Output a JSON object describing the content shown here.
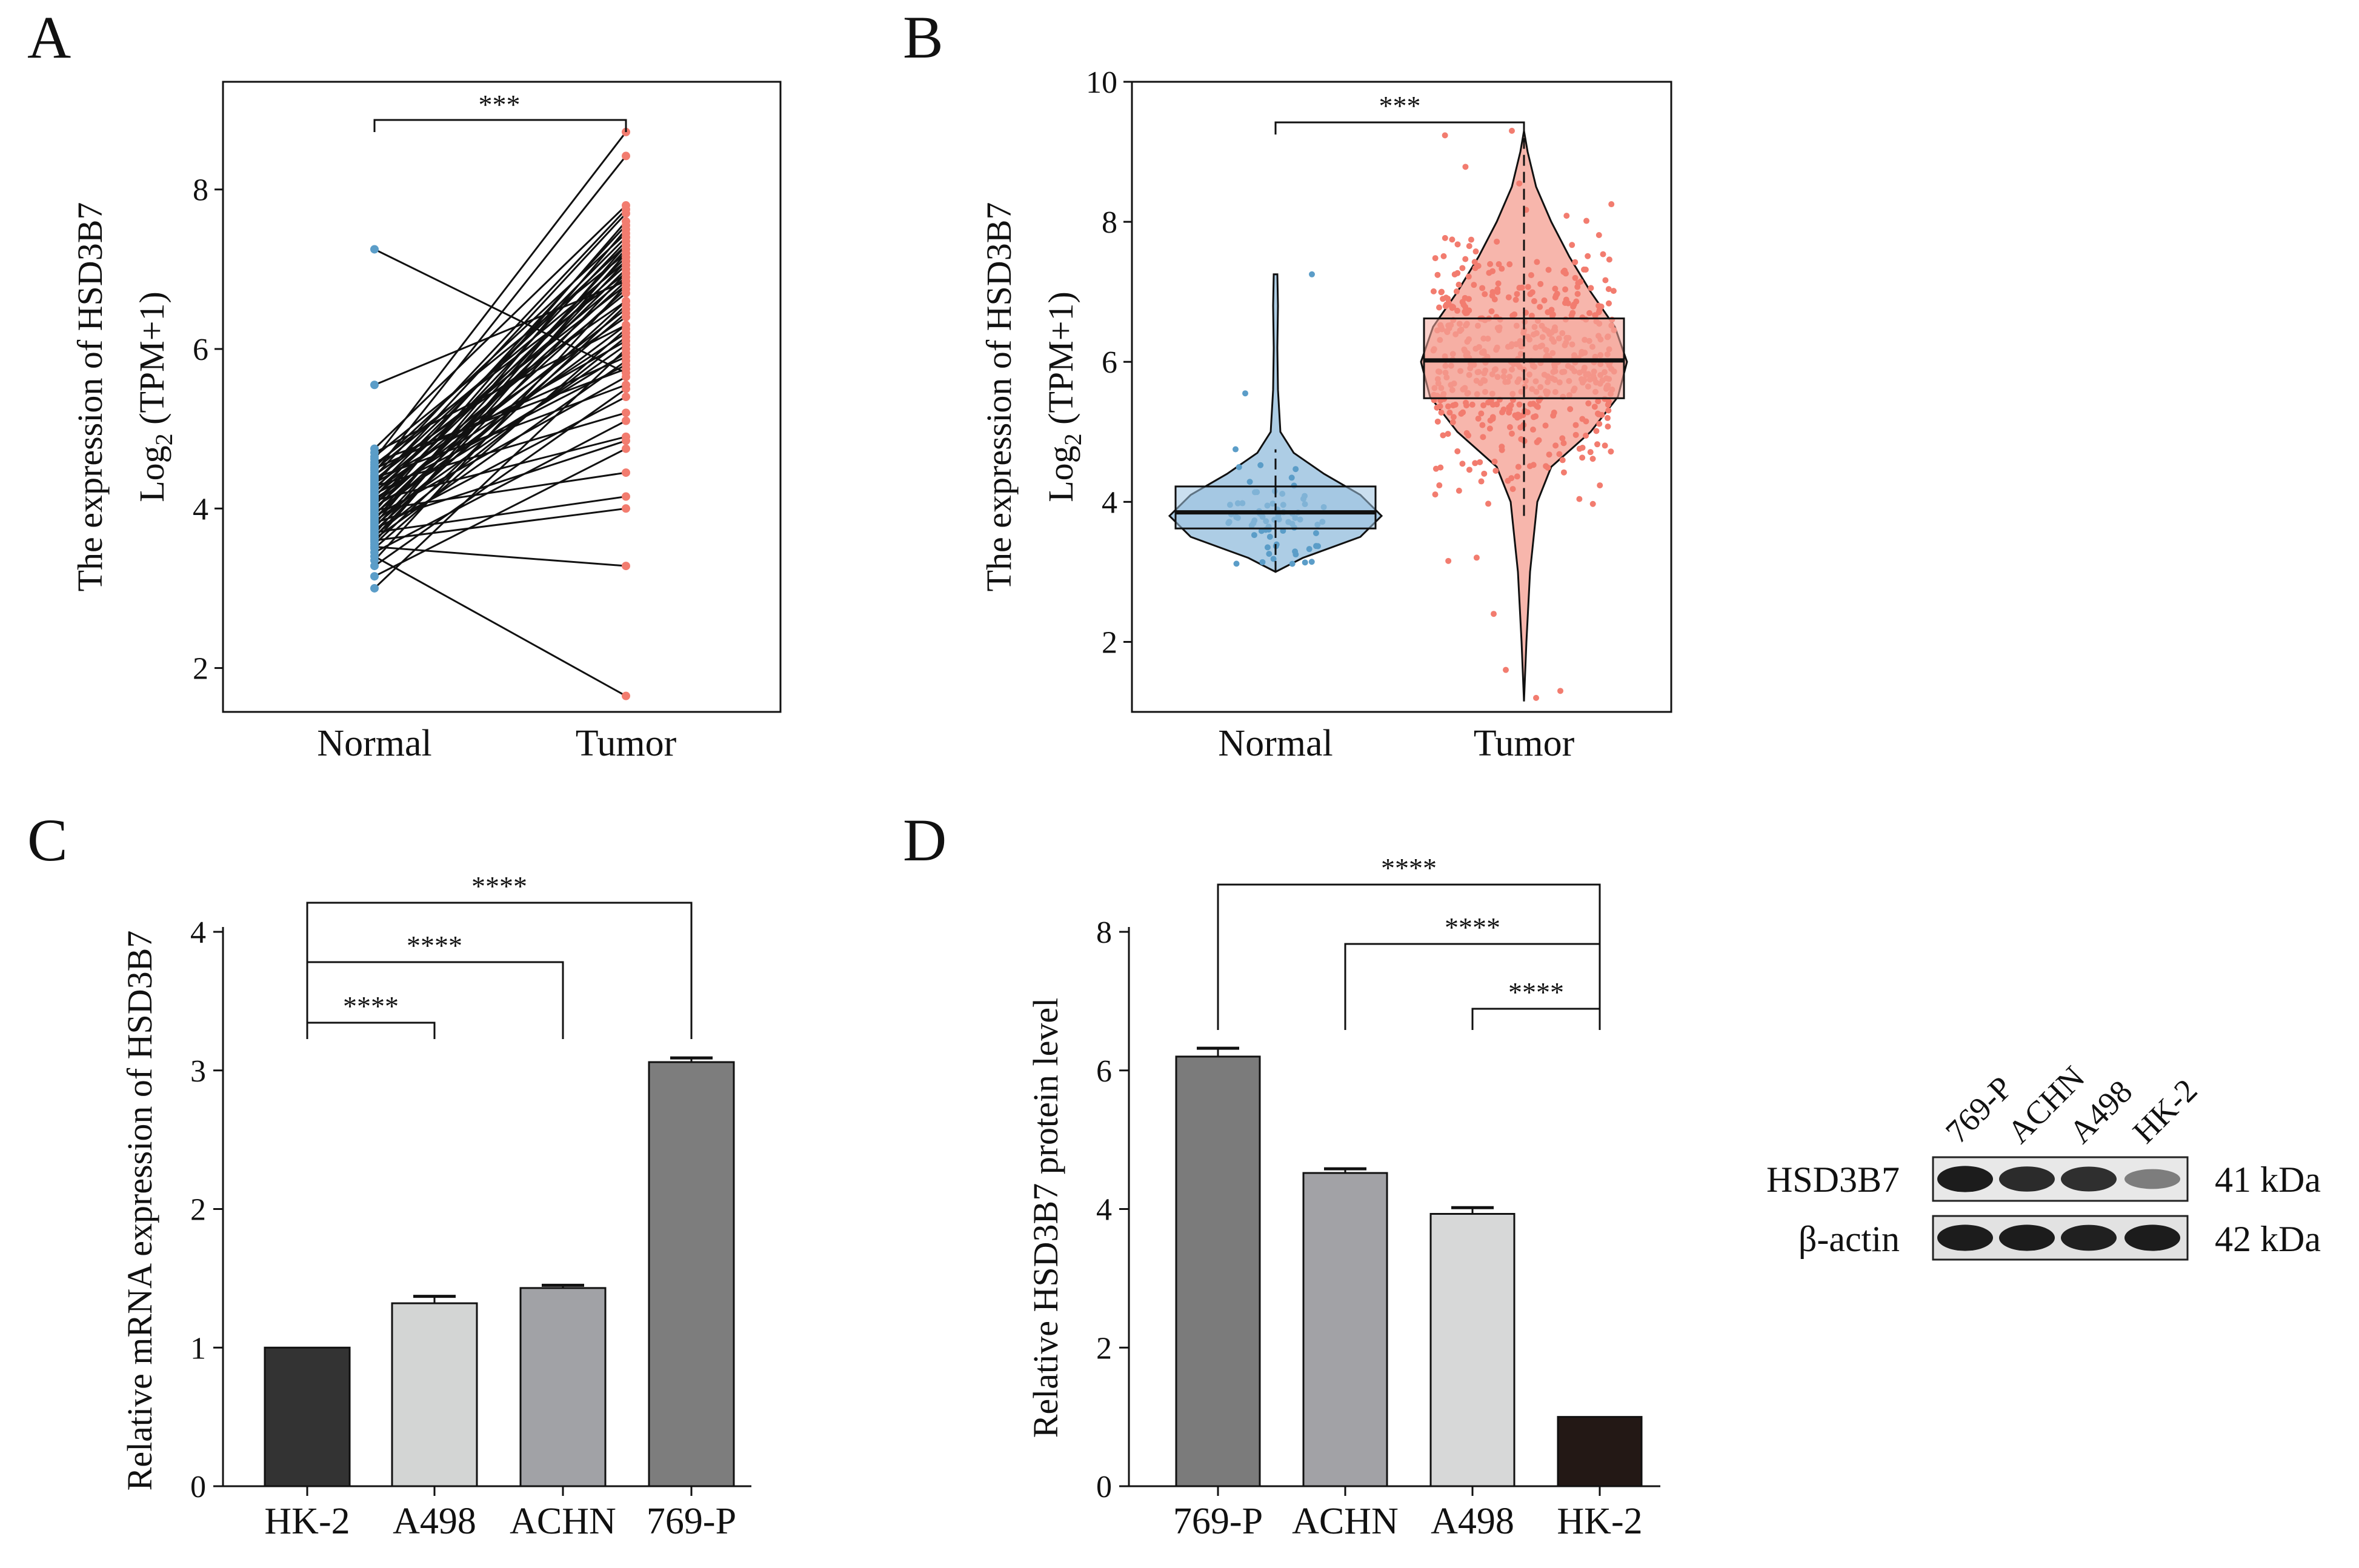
{
  "colors": {
    "normal": "#5b9dc8",
    "tumor": "#f27c6f",
    "normal_fill": "#9fc4e1",
    "tumor_fill": "#f6a99e",
    "axis": "#111111"
  },
  "chart_data": [
    {
      "panel": "A",
      "type": "line",
      "ylabel_line1": "The expression of HSD3B7",
      "ylabel_line2_prefix": "Log",
      "ylabel_line2_sub": "2",
      "ylabel_line2_suffix": " (TPM+1)",
      "categories": [
        "Normal",
        "Tumor"
      ],
      "ylim": [
        1.45,
        9.35
      ],
      "yticks": [
        2,
        4,
        6,
        8
      ],
      "significance": "***",
      "note": "paired samples: each line connects a normal value to its matched tumor value",
      "pairs": [
        [
          7.25,
          5.7
        ],
        [
          5.55,
          6.85
        ],
        [
          4.75,
          7.8
        ],
        [
          4.7,
          6.3
        ],
        [
          4.65,
          7.2
        ],
        [
          4.62,
          8.72
        ],
        [
          4.58,
          5.75
        ],
        [
          4.55,
          6.95
        ],
        [
          4.52,
          7.45
        ],
        [
          4.5,
          5.9
        ],
        [
          4.48,
          7.1
        ],
        [
          4.45,
          8.42
        ],
        [
          4.42,
          6.6
        ],
        [
          4.4,
          7.75
        ],
        [
          4.38,
          5.55
        ],
        [
          4.36,
          6.8
        ],
        [
          4.34,
          7.3
        ],
        [
          4.32,
          6.1
        ],
        [
          4.3,
          7.7
        ],
        [
          4.28,
          5.2
        ],
        [
          4.26,
          6.9
        ],
        [
          4.24,
          7.4
        ],
        [
          4.22,
          6.4
        ],
        [
          4.2,
          7.05
        ],
        [
          4.18,
          5.8
        ],
        [
          4.16,
          6.7
        ],
        [
          4.14,
          7.55
        ],
        [
          4.12,
          6.2
        ],
        [
          4.1,
          4.9
        ],
        [
          4.08,
          7.15
        ],
        [
          4.06,
          6.5
        ],
        [
          4.04,
          7.35
        ],
        [
          4.02,
          5.95
        ],
        [
          4.0,
          6.85
        ],
        [
          3.98,
          4.45
        ],
        [
          3.96,
          7.6
        ],
        [
          3.94,
          6.3
        ],
        [
          3.92,
          7.0
        ],
        [
          3.9,
          5.65
        ],
        [
          3.88,
          6.75
        ],
        [
          3.86,
          7.25
        ],
        [
          3.84,
          6.05
        ],
        [
          3.82,
          4.85
        ],
        [
          3.8,
          7.5
        ],
        [
          3.78,
          6.45
        ],
        [
          3.76,
          7.1
        ],
        [
          3.74,
          5.4
        ],
        [
          3.72,
          6.6
        ],
        [
          3.7,
          4.15
        ],
        [
          3.68,
          7.3
        ],
        [
          3.66,
          6.15
        ],
        [
          3.64,
          6.95
        ],
        [
          3.62,
          5.85
        ],
        [
          3.6,
          4.0
        ],
        [
          3.58,
          7.2
        ],
        [
          3.55,
          6.55
        ],
        [
          3.52,
          3.28
        ],
        [
          3.5,
          6.25
        ],
        [
          3.45,
          5.1
        ],
        [
          3.4,
          1.65
        ],
        [
          3.35,
          6.8
        ],
        [
          3.28,
          5.5
        ],
        [
          3.15,
          4.75
        ],
        [
          3.0,
          6.0
        ]
      ]
    },
    {
      "panel": "B",
      "type": "box",
      "ylabel_line1": "The expression of HSD3B7",
      "ylabel_line2_prefix": "Log",
      "ylabel_line2_sub": "2",
      "ylabel_line2_suffix": " (TPM+1)",
      "categories": [
        "Normal",
        "Tumor"
      ],
      "ylim": [
        1.0,
        10.0
      ],
      "yticks": [
        2,
        4,
        6,
        8,
        10
      ],
      "significance": "***",
      "boxes": [
        {
          "name": "Normal",
          "q1": 3.62,
          "median": 3.85,
          "q3": 4.22,
          "whisker_low": 3.0,
          "whisker_high": 4.75,
          "min": 3.0,
          "max": 7.25,
          "n_points": 72
        },
        {
          "name": "Tumor",
          "q1": 5.48,
          "median": 6.02,
          "q3": 6.62,
          "whisker_low": 3.8,
          "whisker_high": 9.3,
          "min": 1.15,
          "max": 9.3,
          "n_points": 530
        }
      ]
    },
    {
      "panel": "C",
      "type": "bar",
      "ylabel": "Relative mRNA expression of HSD3B7",
      "categories": [
        "HK-2",
        "A498",
        "ACHN",
        "769-P"
      ],
      "values": [
        1.0,
        1.32,
        1.43,
        3.06
      ],
      "errors": [
        0.0,
        0.05,
        0.02,
        0.03
      ],
      "bar_colors": [
        "#333333",
        "#d3d5d4",
        "#a1a2a6",
        "#7d7d7d"
      ],
      "ylim": [
        0,
        4
      ],
      "yticks": [
        0,
        1,
        2,
        3,
        4
      ],
      "comparisons": [
        {
          "from": 0,
          "to": 1,
          "label": "****"
        },
        {
          "from": 0,
          "to": 2,
          "label": "****"
        },
        {
          "from": 0,
          "to": 3,
          "label": "****"
        }
      ]
    },
    {
      "panel": "D",
      "type": "bar",
      "ylabel": "Relative HSD3B7 protein level",
      "categories": [
        "769-P",
        "ACHN",
        "A498",
        "HK-2"
      ],
      "values": [
        6.2,
        4.52,
        3.93,
        1.0
      ],
      "errors": [
        0.12,
        0.06,
        0.09,
        0.0
      ],
      "bar_colors": [
        "#7b7b7b",
        "#a2a2a6",
        "#d7d8d8",
        "#231815"
      ],
      "ylim": [
        0,
        8
      ],
      "yticks": [
        0,
        2,
        4,
        6,
        8
      ],
      "comparisons": [
        {
          "from": 0,
          "to": 3,
          "label": "****"
        },
        {
          "from": 1,
          "to": 3,
          "label": "****"
        },
        {
          "from": 2,
          "to": 3,
          "label": "****"
        }
      ]
    }
  ],
  "panels": {
    "a": "A",
    "b": "B",
    "c": "C",
    "d": "D"
  },
  "western_blot": {
    "lanes": [
      "769-P",
      "ACHN",
      "A498",
      "HK-2"
    ],
    "rows": [
      {
        "label": "HSD3B7",
        "kda": "41 kDa",
        "band_intensity": [
          0.95,
          0.85,
          0.82,
          0.3
        ]
      },
      {
        "label": "β-actin",
        "kda": "42 kDa",
        "band_intensity": [
          0.95,
          0.95,
          0.92,
          0.95
        ]
      }
    ]
  }
}
